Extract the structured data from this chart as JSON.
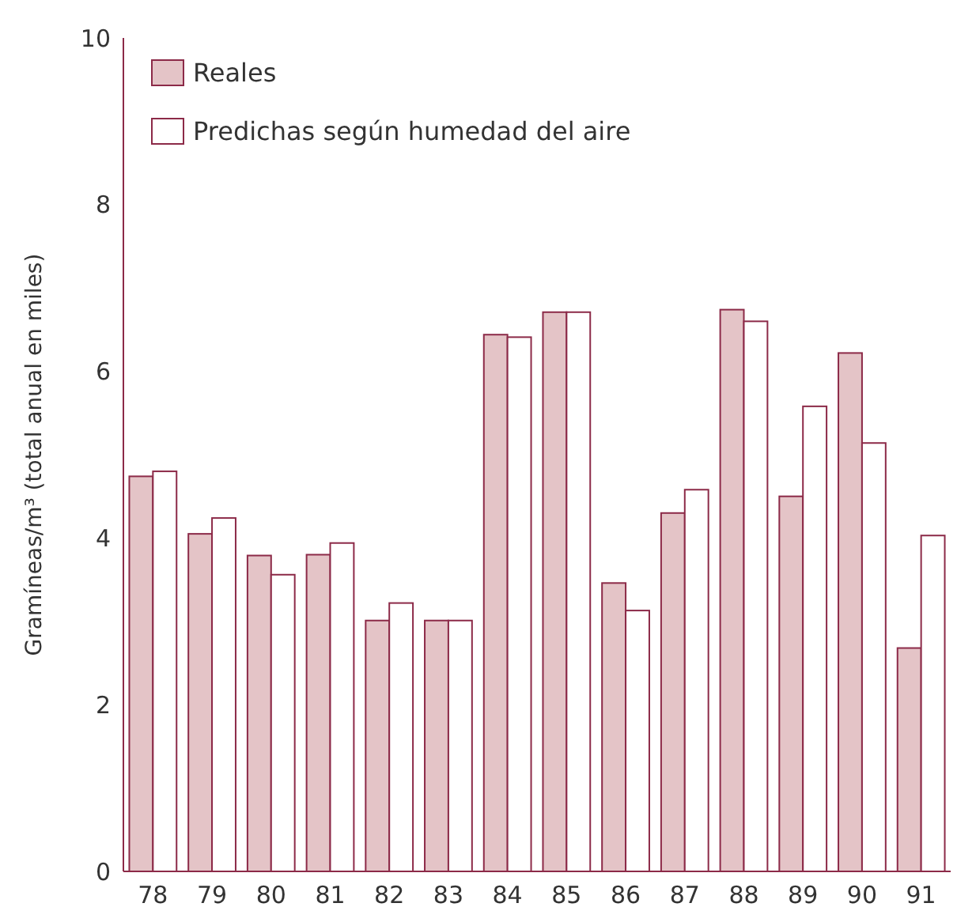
{
  "chart_data": {
    "type": "bar",
    "ylabel": "Gramíneas/m³ (total anual en miles)",
    "categories": [
      "78",
      "79",
      "80",
      "81",
      "82",
      "83",
      "84",
      "85",
      "86",
      "87",
      "88",
      "89",
      "90",
      "91"
    ],
    "series": [
      {
        "name": "Reales",
        "color": "#e4c4c7",
        "values": [
          4.74,
          4.05,
          3.79,
          3.8,
          3.01,
          3.01,
          6.44,
          6.71,
          3.46,
          4.3,
          6.74,
          4.5,
          6.22,
          2.68
        ]
      },
      {
        "name": "Predichas según humedad del aire",
        "color": "#ffffff",
        "values": [
          4.8,
          4.24,
          3.56,
          3.94,
          3.22,
          3.01,
          6.41,
          6.71,
          3.13,
          4.58,
          6.6,
          5.58,
          5.14,
          4.03
        ]
      }
    ],
    "ylim": [
      0,
      10
    ],
    "yticks": [
      0,
      2,
      4,
      6,
      8,
      10
    ],
    "legend": "top left"
  }
}
